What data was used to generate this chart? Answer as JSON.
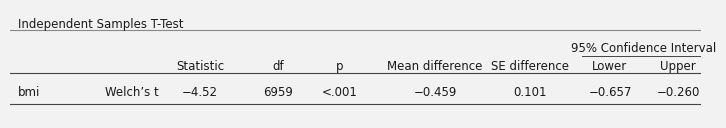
{
  "title": "Independent Samples T-Test",
  "ci_label": "95% Confidence Interval",
  "subheader_labels": [
    "Statistic",
    "df",
    "p",
    "Mean difference",
    "SE difference",
    "Lower",
    "Upper"
  ],
  "row_label1": "bmi",
  "row_label2": "Welch’s t",
  "row_data": [
    "−4.52",
    "6959",
    "<.001",
    "−0.459",
    "0.101",
    "−0.657",
    "−0.260"
  ],
  "background_color": "#f2f2f2",
  "text_color": "#1a1a1a",
  "font_size": 8.5
}
